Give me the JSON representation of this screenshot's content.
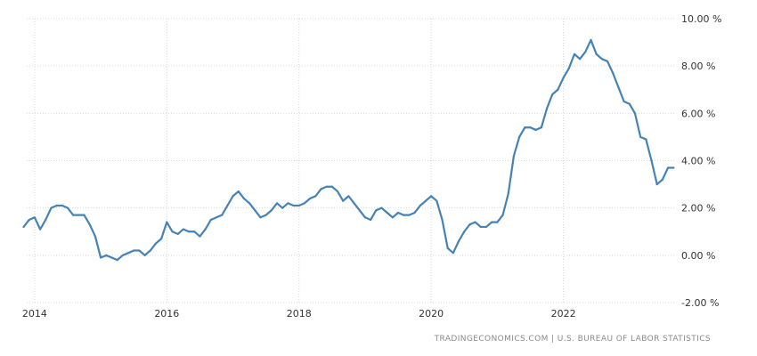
{
  "source_note": "TRADINGECONOMICS.COM  |  U.S. BUREAU OF LABOR STATISTICS",
  "colors": {
    "line": "#4682b4",
    "grid": "#d7d7d7",
    "text": "#333333",
    "source": "#8a8a8a"
  },
  "chart_data": {
    "type": "line",
    "title": "",
    "xlabel": "",
    "ylabel": "",
    "ylim": [
      -2,
      10
    ],
    "xlim": [
      2013.88,
      2023.69
    ],
    "grid": true,
    "y_axis_position": "right",
    "y_ticks": [
      -2,
      0,
      2,
      4,
      6,
      8,
      10
    ],
    "y_tick_labels": [
      "-2.00 %",
      "0.00 %",
      "2.00 %",
      "4.00 %",
      "6.00 %",
      "8.00 %",
      "10.00 %"
    ],
    "x_ticks": [
      2014,
      2016,
      2018,
      2020,
      2022
    ],
    "x_tick_labels": [
      "2014",
      "2016",
      "2018",
      "2020",
      "2022"
    ],
    "series": [
      {
        "name": "",
        "color": "#4682b4",
        "start": "2013-11",
        "frequency": "monthly",
        "values": [
          1.2,
          1.5,
          1.6,
          1.1,
          1.5,
          2.0,
          2.1,
          2.1,
          2.0,
          1.7,
          1.7,
          1.7,
          1.3,
          0.8,
          -0.1,
          0.0,
          -0.1,
          -0.2,
          0.0,
          0.1,
          0.2,
          0.2,
          0.0,
          0.2,
          0.5,
          0.7,
          1.4,
          1.0,
          0.9,
          1.1,
          1.0,
          1.0,
          0.8,
          1.1,
          1.5,
          1.6,
          1.7,
          2.1,
          2.5,
          2.7,
          2.4,
          2.2,
          1.9,
          1.6,
          1.7,
          1.9,
          2.2,
          2.0,
          2.2,
          2.1,
          2.1,
          2.2,
          2.4,
          2.5,
          2.8,
          2.9,
          2.9,
          2.7,
          2.3,
          2.5,
          2.2,
          1.9,
          1.6,
          1.5,
          1.9,
          2.0,
          1.8,
          1.6,
          1.8,
          1.7,
          1.7,
          1.8,
          2.1,
          2.3,
          2.5,
          2.3,
          1.5,
          0.3,
          0.1,
          0.6,
          1.0,
          1.3,
          1.4,
          1.2,
          1.2,
          1.4,
          1.4,
          1.7,
          2.6,
          4.2,
          5.0,
          5.4,
          5.4,
          5.3,
          5.4,
          6.2,
          6.8,
          7.0,
          7.5,
          7.9,
          8.5,
          8.3,
          8.6,
          9.1,
          8.5,
          8.3,
          8.2,
          7.7,
          7.1,
          6.5,
          6.4,
          6.0,
          5.0,
          4.9,
          4.0,
          3.0,
          3.2,
          3.7,
          3.7
        ]
      }
    ]
  }
}
